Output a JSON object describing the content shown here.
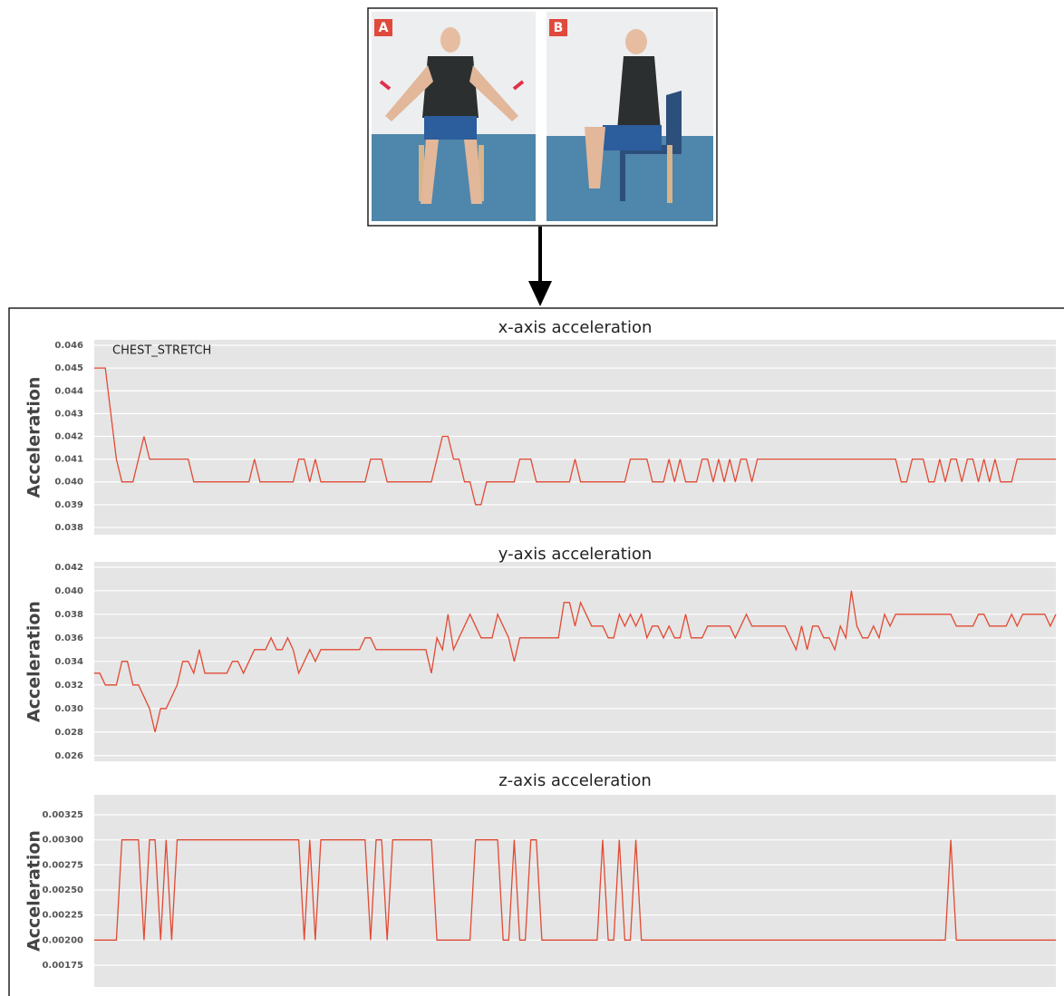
{
  "figure": {
    "panels": [
      "A",
      "B"
    ]
  },
  "chart_data": [
    {
      "type": "line",
      "title": "x-axis acceleration",
      "y_label": "Acceleration",
      "annotation": "CHEST_STRETCH",
      "color": "#e24a33",
      "grid": true,
      "ylim": [
        0.03768,
        0.04624
      ],
      "yticks": [
        {
          "value": 0.038,
          "label": "0.038"
        },
        0.039,
        {
          "value": 0.04,
          "label": "0.040"
        },
        0.041,
        0.042,
        0.043,
        0.044,
        0.045,
        0.046
      ],
      "values": [
        0.045,
        0.045,
        0.045,
        0.043,
        0.041,
        0.04,
        0.04,
        0.04,
        0.041,
        0.042,
        0.041,
        0.041,
        0.041,
        0.041,
        0.041,
        0.041,
        0.041,
        0.041,
        0.04,
        0.04,
        0.04,
        0.04,
        0.04,
        0.04,
        0.04,
        0.04,
        0.04,
        0.04,
        0.04,
        0.041,
        0.04,
        0.04,
        0.04,
        0.04,
        0.04,
        0.04,
        0.04,
        0.041,
        0.041,
        0.04,
        0.041,
        0.04,
        0.04,
        0.04,
        0.04,
        0.04,
        0.04,
        0.04,
        0.04,
        0.04,
        0.041,
        0.041,
        0.041,
        0.04,
        0.04,
        0.04,
        0.04,
        0.04,
        0.04,
        0.04,
        0.04,
        0.04,
        0.041,
        0.042,
        0.042,
        0.041,
        0.041,
        0.04,
        0.04,
        0.039,
        0.039,
        0.04,
        0.04,
        0.04,
        0.04,
        0.04,
        0.04,
        0.041,
        0.041,
        0.041,
        0.04,
        0.04,
        0.04,
        0.04,
        0.04,
        0.04,
        0.04,
        0.041,
        0.04,
        0.04,
        0.04,
        0.04,
        0.04,
        0.04,
        0.04,
        0.04,
        0.04,
        0.041,
        0.041,
        0.041,
        0.041,
        0.04,
        0.04,
        0.04,
        0.041,
        0.04,
        0.041,
        0.04,
        0.04,
        0.04,
        0.041,
        0.041,
        0.04,
        0.041,
        0.04,
        0.041,
        0.04,
        0.041,
        0.041,
        0.04,
        0.041,
        0.041,
        0.041,
        0.041,
        0.041,
        0.041,
        0.041,
        0.041,
        0.041,
        0.041,
        0.041,
        0.041,
        0.041,
        0.041,
        0.041,
        0.041,
        0.041,
        0.041,
        0.041,
        0.041,
        0.041,
        0.041,
        0.041,
        0.041,
        0.041,
        0.041,
        0.04,
        0.04,
        0.041,
        0.041,
        0.041,
        0.04,
        0.04,
        0.041,
        0.04,
        0.041,
        0.041,
        0.04,
        0.041,
        0.041,
        0.04,
        0.041,
        0.04,
        0.041,
        0.04,
        0.04,
        0.04,
        0.041,
        0.041,
        0.041,
        0.041,
        0.041,
        0.041,
        0.041,
        0.041
      ]
    },
    {
      "type": "line",
      "title": "y-axis acceleration",
      "y_label": "Acceleration",
      "color": "#e24a33",
      "grid": true,
      "ylim": [
        0.02552,
        0.04245
      ],
      "yticks": [
        0.026,
        0.028,
        {
          "value": 0.03,
          "label": "0.030"
        },
        0.032,
        0.034,
        0.036,
        0.038,
        {
          "value": 0.04,
          "label": "0.040"
        },
        0.042
      ],
      "values": [
        0.033,
        0.033,
        0.032,
        0.032,
        0.032,
        0.034,
        0.034,
        0.032,
        0.032,
        0.031,
        0.03,
        0.028,
        0.03,
        0.03,
        0.031,
        0.032,
        0.034,
        0.034,
        0.033,
        0.035,
        0.033,
        0.033,
        0.033,
        0.033,
        0.033,
        0.034,
        0.034,
        0.033,
        0.034,
        0.035,
        0.035,
        0.035,
        0.036,
        0.035,
        0.035,
        0.036,
        0.035,
        0.033,
        0.034,
        0.035,
        0.034,
        0.035,
        0.035,
        0.035,
        0.035,
        0.035,
        0.035,
        0.035,
        0.035,
        0.036,
        0.036,
        0.035,
        0.035,
        0.035,
        0.035,
        0.035,
        0.035,
        0.035,
        0.035,
        0.035,
        0.035,
        0.033,
        0.036,
        0.035,
        0.038,
        0.035,
        0.036,
        0.037,
        0.038,
        0.037,
        0.036,
        0.036,
        0.036,
        0.038,
        0.037,
        0.036,
        0.034,
        0.036,
        0.036,
        0.036,
        0.036,
        0.036,
        0.036,
        0.036,
        0.036,
        0.039,
        0.039,
        0.037,
        0.039,
        0.038,
        0.037,
        0.037,
        0.037,
        0.036,
        0.036,
        0.038,
        0.037,
        0.038,
        0.037,
        0.038,
        0.036,
        0.037,
        0.037,
        0.036,
        0.037,
        0.036,
        0.036,
        0.038,
        0.036,
        0.036,
        0.036,
        0.037,
        0.037,
        0.037,
        0.037,
        0.037,
        0.036,
        0.037,
        0.038,
        0.037,
        0.037,
        0.037,
        0.037,
        0.037,
        0.037,
        0.037,
        0.036,
        0.035,
        0.037,
        0.035,
        0.037,
        0.037,
        0.036,
        0.036,
        0.035,
        0.037,
        0.036,
        0.04,
        0.037,
        0.036,
        0.036,
        0.037,
        0.036,
        0.038,
        0.037,
        0.038,
        0.038,
        0.038,
        0.038,
        0.038,
        0.038,
        0.038,
        0.038,
        0.038,
        0.038,
        0.038,
        0.037,
        0.037,
        0.037,
        0.037,
        0.038,
        0.038,
        0.037,
        0.037,
        0.037,
        0.037,
        0.038,
        0.037,
        0.038,
        0.038,
        0.038,
        0.038,
        0.038,
        0.037,
        0.038
      ]
    },
    {
      "type": "line",
      "title": "z-axis acceleration",
      "y_label": "Acceleration",
      "color": "#e24a33",
      "grid": true,
      "ylim": [
        0.001533,
        0.003449
      ],
      "yticks": [
        {
          "value": 0.00175,
          "label": "0.00175"
        },
        {
          "value": 0.002,
          "label": "0.00200"
        },
        {
          "value": 0.00225,
          "label": "0.00225"
        },
        {
          "value": 0.0025,
          "label": "0.00250"
        },
        {
          "value": 0.00275,
          "label": "0.00275"
        },
        {
          "value": 0.003,
          "label": "0.00300"
        },
        {
          "value": 0.00325,
          "label": "0.00325"
        }
      ],
      "values": [
        0.002,
        0.002,
        0.002,
        0.002,
        0.002,
        0.003,
        0.003,
        0.003,
        0.003,
        0.002,
        0.003,
        0.003,
        0.002,
        0.003,
        0.002,
        0.003,
        0.003,
        0.003,
        0.003,
        0.003,
        0.003,
        0.003,
        0.003,
        0.003,
        0.003,
        0.003,
        0.003,
        0.003,
        0.003,
        0.003,
        0.003,
        0.003,
        0.003,
        0.003,
        0.003,
        0.003,
        0.003,
        0.003,
        0.002,
        0.003,
        0.002,
        0.003,
        0.003,
        0.003,
        0.003,
        0.003,
        0.003,
        0.003,
        0.003,
        0.003,
        0.002,
        0.003,
        0.003,
        0.002,
        0.003,
        0.003,
        0.003,
        0.003,
        0.003,
        0.003,
        0.003,
        0.003,
        0.002,
        0.002,
        0.002,
        0.002,
        0.002,
        0.002,
        0.002,
        0.003,
        0.003,
        0.003,
        0.003,
        0.003,
        0.002,
        0.002,
        0.003,
        0.002,
        0.002,
        0.003,
        0.003,
        0.002,
        0.002,
        0.002,
        0.002,
        0.002,
        0.002,
        0.002,
        0.002,
        0.002,
        0.002,
        0.002,
        0.003,
        0.002,
        0.002,
        0.003,
        0.002,
        0.002,
        0.003,
        0.002,
        0.002,
        0.002,
        0.002,
        0.002,
        0.002,
        0.002,
        0.002,
        0.002,
        0.002,
        0.002,
        0.002,
        0.002,
        0.002,
        0.002,
        0.002,
        0.002,
        0.002,
        0.002,
        0.002,
        0.002,
        0.002,
        0.002,
        0.002,
        0.002,
        0.002,
        0.002,
        0.002,
        0.002,
        0.002,
        0.002,
        0.002,
        0.002,
        0.002,
        0.002,
        0.002,
        0.002,
        0.002,
        0.002,
        0.002,
        0.002,
        0.002,
        0.002,
        0.002,
        0.002,
        0.002,
        0.002,
        0.002,
        0.002,
        0.002,
        0.002,
        0.002,
        0.002,
        0.002,
        0.002,
        0.002,
        0.003,
        0.002,
        0.002,
        0.002,
        0.002,
        0.002,
        0.002,
        0.002,
        0.002,
        0.002,
        0.002,
        0.002,
        0.002,
        0.002,
        0.002,
        0.002,
        0.002,
        0.002,
        0.002,
        0.002
      ]
    }
  ]
}
